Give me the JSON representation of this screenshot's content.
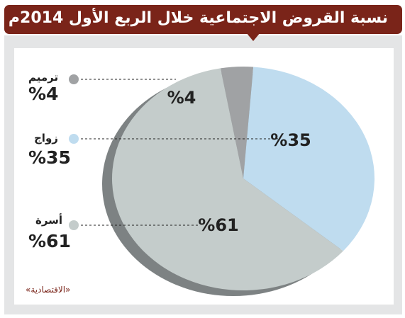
{
  "title": "نسبة القروض الاجتماعية خلال الربع الأول 2014م",
  "source": "«الاقتصادية»",
  "colors": {
    "title_bg": "#7a2419",
    "frame_bg": "#e4e5e6",
    "shadow": "#7d8283",
    "slice_marriage": "#bfdcef",
    "slice_family": "#c4cccb",
    "slice_renovation": "#a0a2a4"
  },
  "chart_data": {
    "type": "pie",
    "title": "نسبة القروض الاجتماعية خلال الربع الأول 2014م",
    "unit": "%",
    "slices": [
      {
        "name": "ترميم",
        "value": 4,
        "label": "%4",
        "color": "#a0a2a4"
      },
      {
        "name": "زواج",
        "value": 35,
        "label": "%35",
        "color": "#bfdcef"
      },
      {
        "name": "أسرة",
        "value": 61,
        "label": "%61",
        "color": "#c4cccb"
      }
    ],
    "legend_placement": "left"
  }
}
